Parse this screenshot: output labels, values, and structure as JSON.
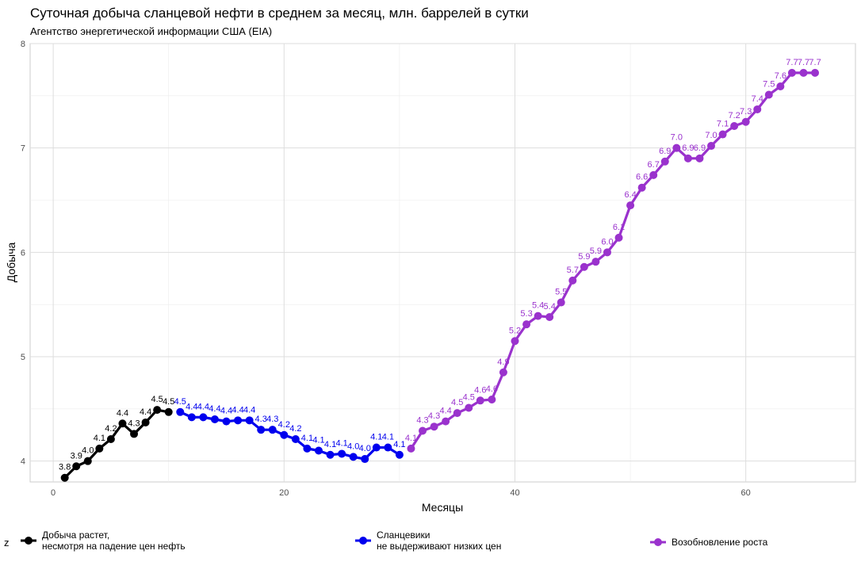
{
  "title": "Суточная добыча сланцевой нефти в среднем за месяц, млн. баррелей в сутки",
  "subtitle": "Агентство энергетической информации США (EIA)",
  "legend_title": "z",
  "chart_data": {
    "type": "line",
    "xlabel": "Месяцы",
    "ylabel": "Добыча",
    "xlim": [
      -2,
      69.5
    ],
    "ylim": [
      3.8,
      8.0
    ],
    "xticks": [
      0,
      20,
      40,
      60
    ],
    "yticks": [
      4,
      5,
      6,
      7,
      8
    ],
    "grid": true,
    "legend_position": "bottom",
    "series": [
      {
        "name": "Добыча растет,\nнесмотря на падение цен нефть",
        "color": "#000000",
        "x": [
          1,
          2,
          3,
          4,
          5,
          6,
          7,
          8,
          9,
          10
        ],
        "y": [
          3.84,
          3.95,
          4.0,
          4.12,
          4.21,
          4.36,
          4.26,
          4.37,
          4.49,
          4.47
        ],
        "labels": [
          "3.8",
          "3.9",
          "4.0",
          "4.1",
          "4.2",
          "4.4",
          "4.3",
          "4.4",
          "4.5",
          "4.5"
        ]
      },
      {
        "name": "Сланцевики\nне выдерживают низких цен",
        "color": "#0000ee",
        "x": [
          11,
          12,
          13,
          14,
          15,
          16,
          17,
          18,
          19,
          20,
          21,
          22,
          23,
          24,
          25,
          26,
          27,
          28,
          29,
          30
        ],
        "y": [
          4.47,
          4.42,
          4.42,
          4.4,
          4.38,
          4.39,
          4.39,
          4.3,
          4.3,
          4.25,
          4.21,
          4.12,
          4.1,
          4.06,
          4.07,
          4.04,
          4.02,
          4.13,
          4.13,
          4.06
        ],
        "labels": [
          "4.5",
          "4.4",
          "4.4",
          "4.4",
          "4.4",
          "4.4",
          "4.4",
          "4.3",
          "4.3",
          "4.2",
          "4.2",
          "4.1",
          "4.1",
          "4.1",
          "4.1",
          "4.0",
          "4.0",
          "4.1",
          "4.1",
          "4.1"
        ]
      },
      {
        "name": "Возобновление роста",
        "color": "#9a32cd",
        "x": [
          31,
          32,
          33,
          34,
          35,
          36,
          37,
          38,
          39,
          40,
          41,
          42,
          43,
          44,
          45,
          46,
          47,
          48,
          49,
          50,
          51,
          52,
          53,
          54,
          55,
          56,
          57,
          58,
          59,
          60,
          61,
          62,
          63,
          64,
          65,
          66
        ],
        "y": [
          4.12,
          4.29,
          4.33,
          4.38,
          4.46,
          4.51,
          4.58,
          4.59,
          4.85,
          5.15,
          5.31,
          5.39,
          5.38,
          5.52,
          5.73,
          5.86,
          5.91,
          6.0,
          6.14,
          6.45,
          6.62,
          6.74,
          6.87,
          7.0,
          6.9,
          6.9,
          7.02,
          7.13,
          7.21,
          7.25,
          7.37,
          7.51,
          7.59,
          7.72,
          7.72,
          7.72
        ],
        "labels": [
          "4.1",
          "4.3",
          "4.3",
          "4.4",
          "4.5",
          "4.5",
          "4.6",
          "4.6",
          "4.9",
          "5.2",
          "5.3",
          "5.4",
          "5.4",
          "5.5",
          "5.7",
          "5.9",
          "5.9",
          "6.0",
          "6.1",
          "6.4",
          "6.6",
          "6.7",
          "6.9",
          "7.0",
          "6.9",
          "6.9",
          "7.0",
          "7.1",
          "7.2",
          "7.3",
          "7.4",
          "7.5",
          "7.6",
          "7.7",
          "7.7",
          "7.7"
        ]
      }
    ]
  }
}
